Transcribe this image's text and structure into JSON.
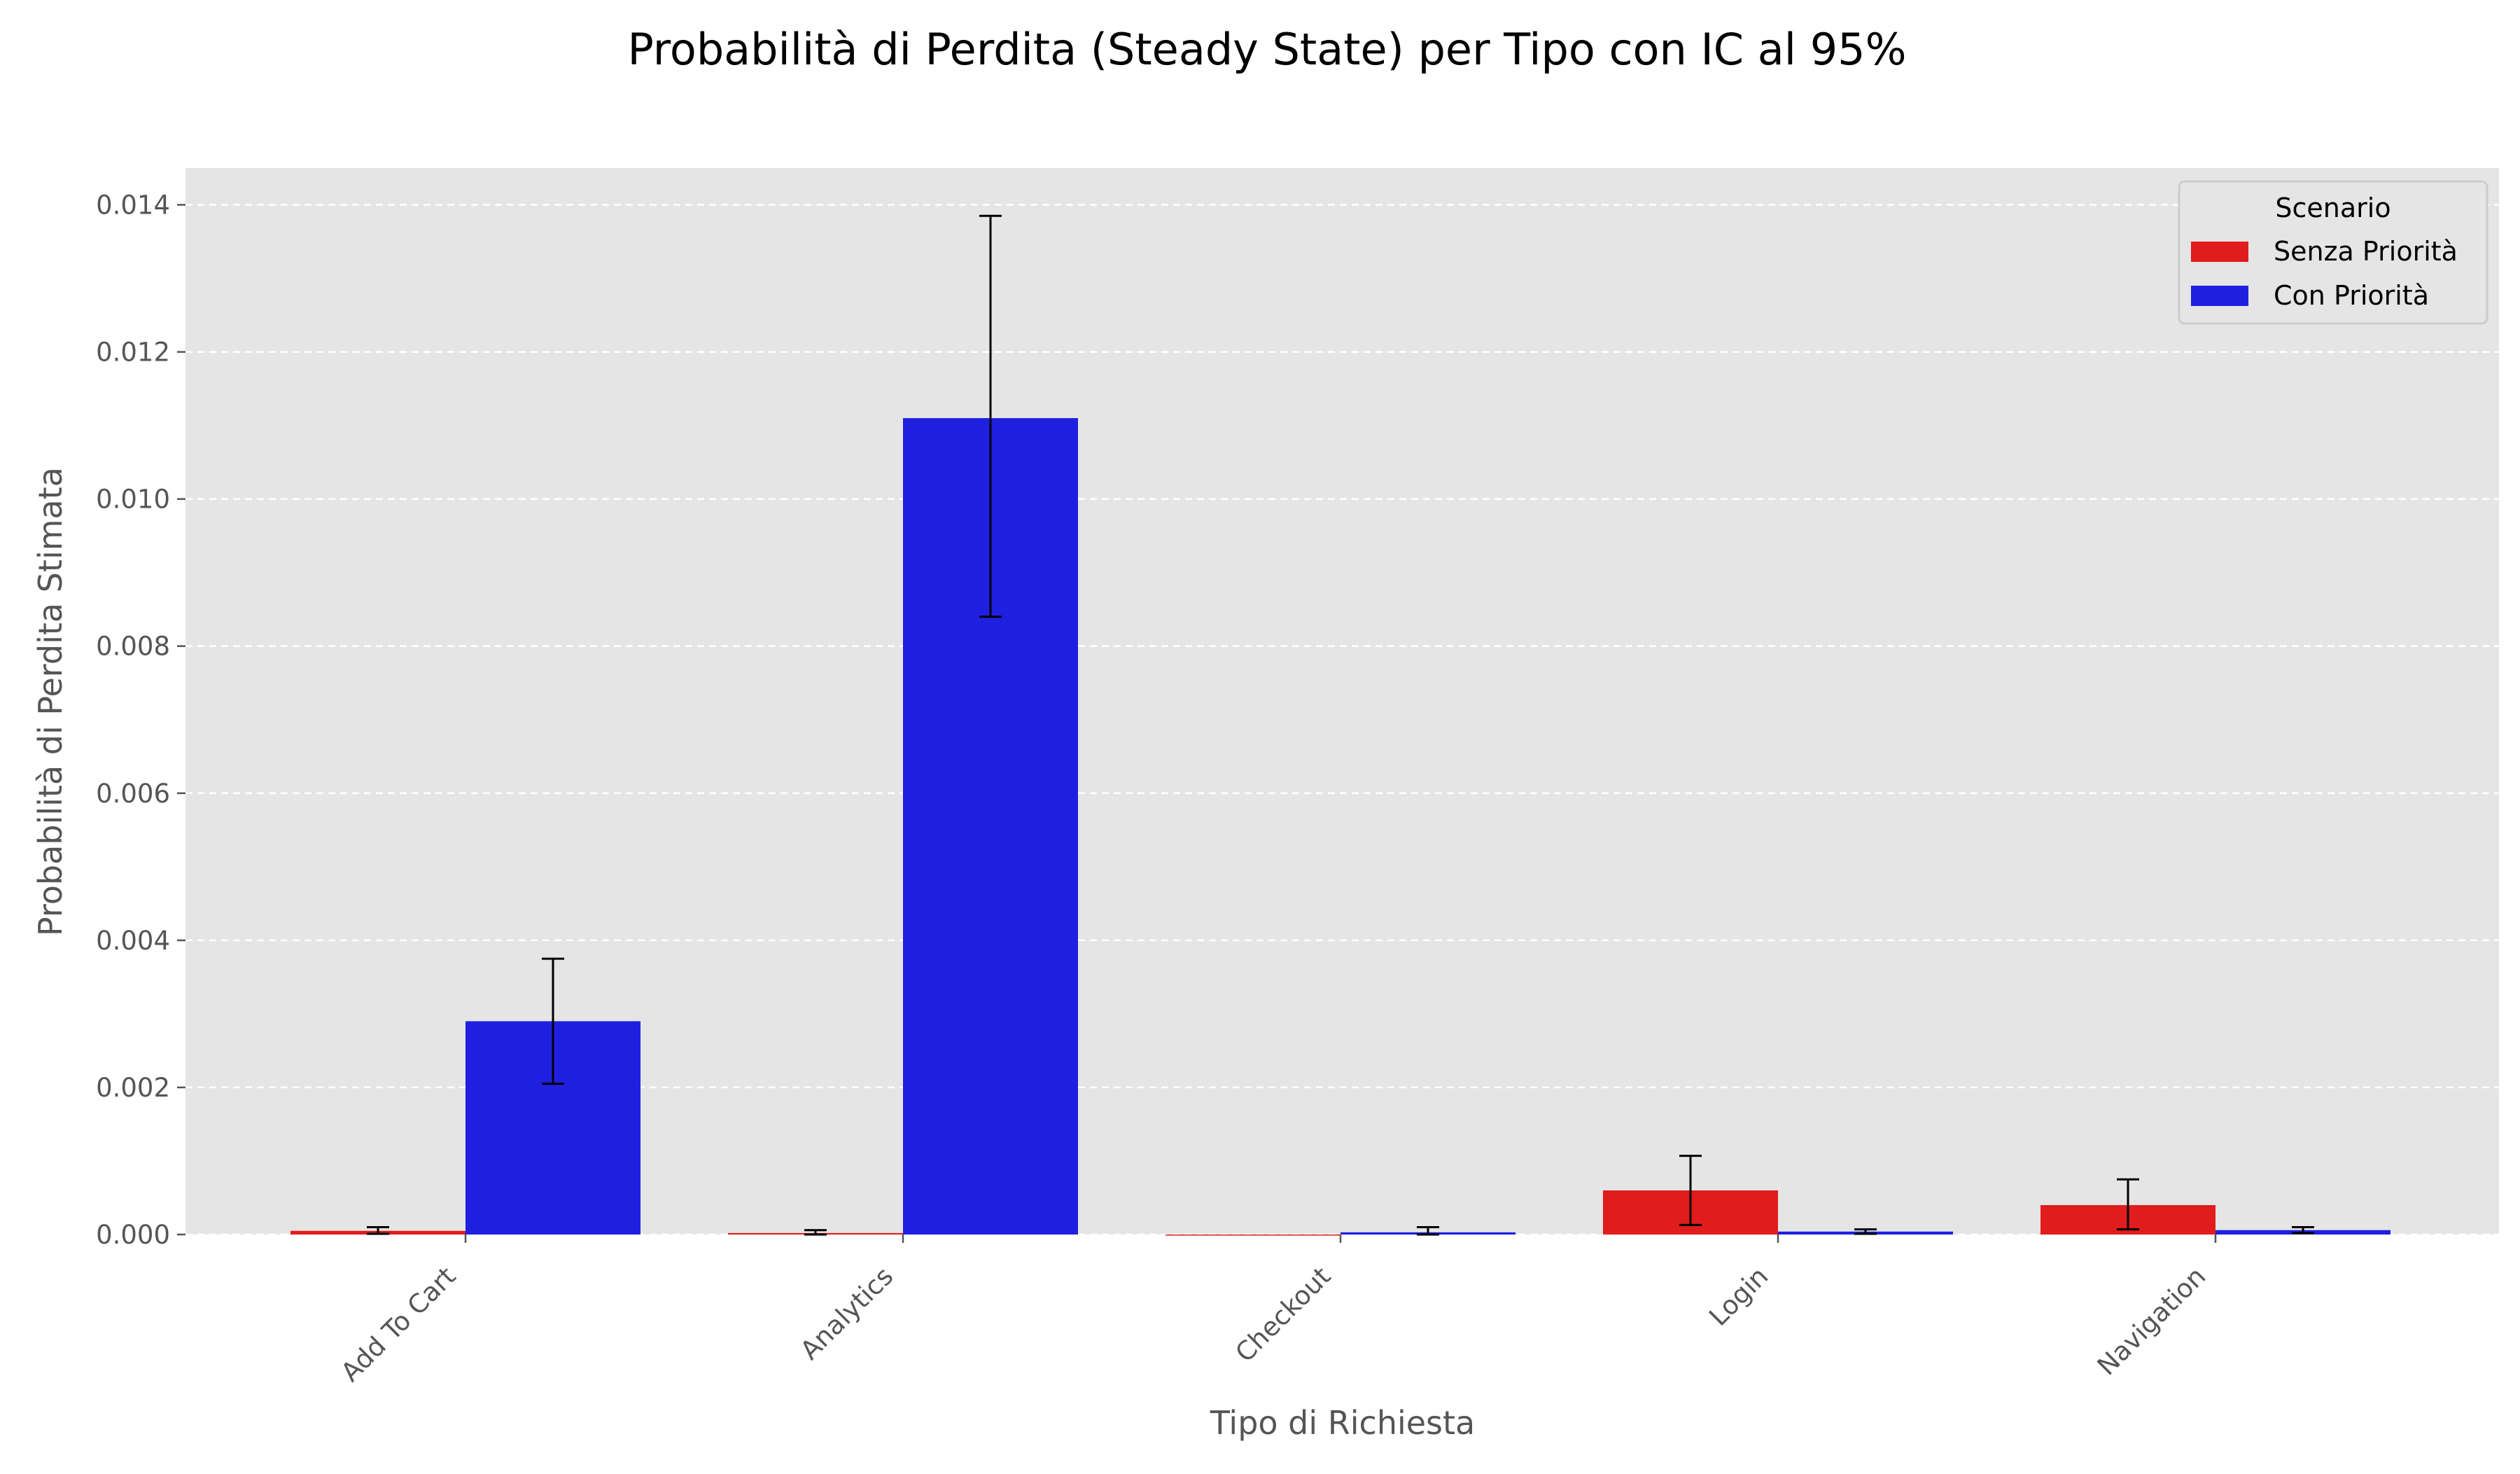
{
  "chart_data": {
    "type": "bar",
    "title": "Probabilità di Perdita (Steady State) per Tipo con IC al 95%",
    "xlabel": "Tipo di Richiesta",
    "ylabel": "Probabilità di Perdita Stimata",
    "categories": [
      "Add To Cart",
      "Analytics",
      "Checkout",
      "Login",
      "Navigation"
    ],
    "ylim": [
      0,
      0.0145
    ],
    "yticks": [
      0.0,
      0.002,
      0.004,
      0.006,
      0.008,
      0.01,
      0.012,
      0.014
    ],
    "ytick_labels": [
      "0.000",
      "0.002",
      "0.004",
      "0.006",
      "0.008",
      "0.010",
      "0.012",
      "0.014"
    ],
    "grid": "horizontal dashed",
    "legend": {
      "title": "Scenario",
      "placement": "top-right"
    },
    "series": [
      {
        "name": "Senza Priorità",
        "color": "#e01c1c",
        "values": [
          5e-05,
          2e-05,
          0.0,
          0.0006,
          0.0004
        ],
        "ci_low": [
          1e-05,
          0.0,
          0.0,
          0.00013,
          7e-05
        ],
        "ci_high": [
          0.0001,
          6e-05,
          0.0,
          0.00107,
          0.00075
        ]
      },
      {
        "name": "Con Priorità",
        "color": "#1f1fe0",
        "values": [
          0.0029,
          0.0111,
          3e-05,
          4e-05,
          6e-05
        ],
        "ci_low": [
          0.00205,
          0.0084,
          0.0,
          1e-05,
          2e-05
        ],
        "ci_high": [
          0.00375,
          0.01385,
          0.0001,
          7e-05,
          0.0001
        ]
      }
    ]
  }
}
